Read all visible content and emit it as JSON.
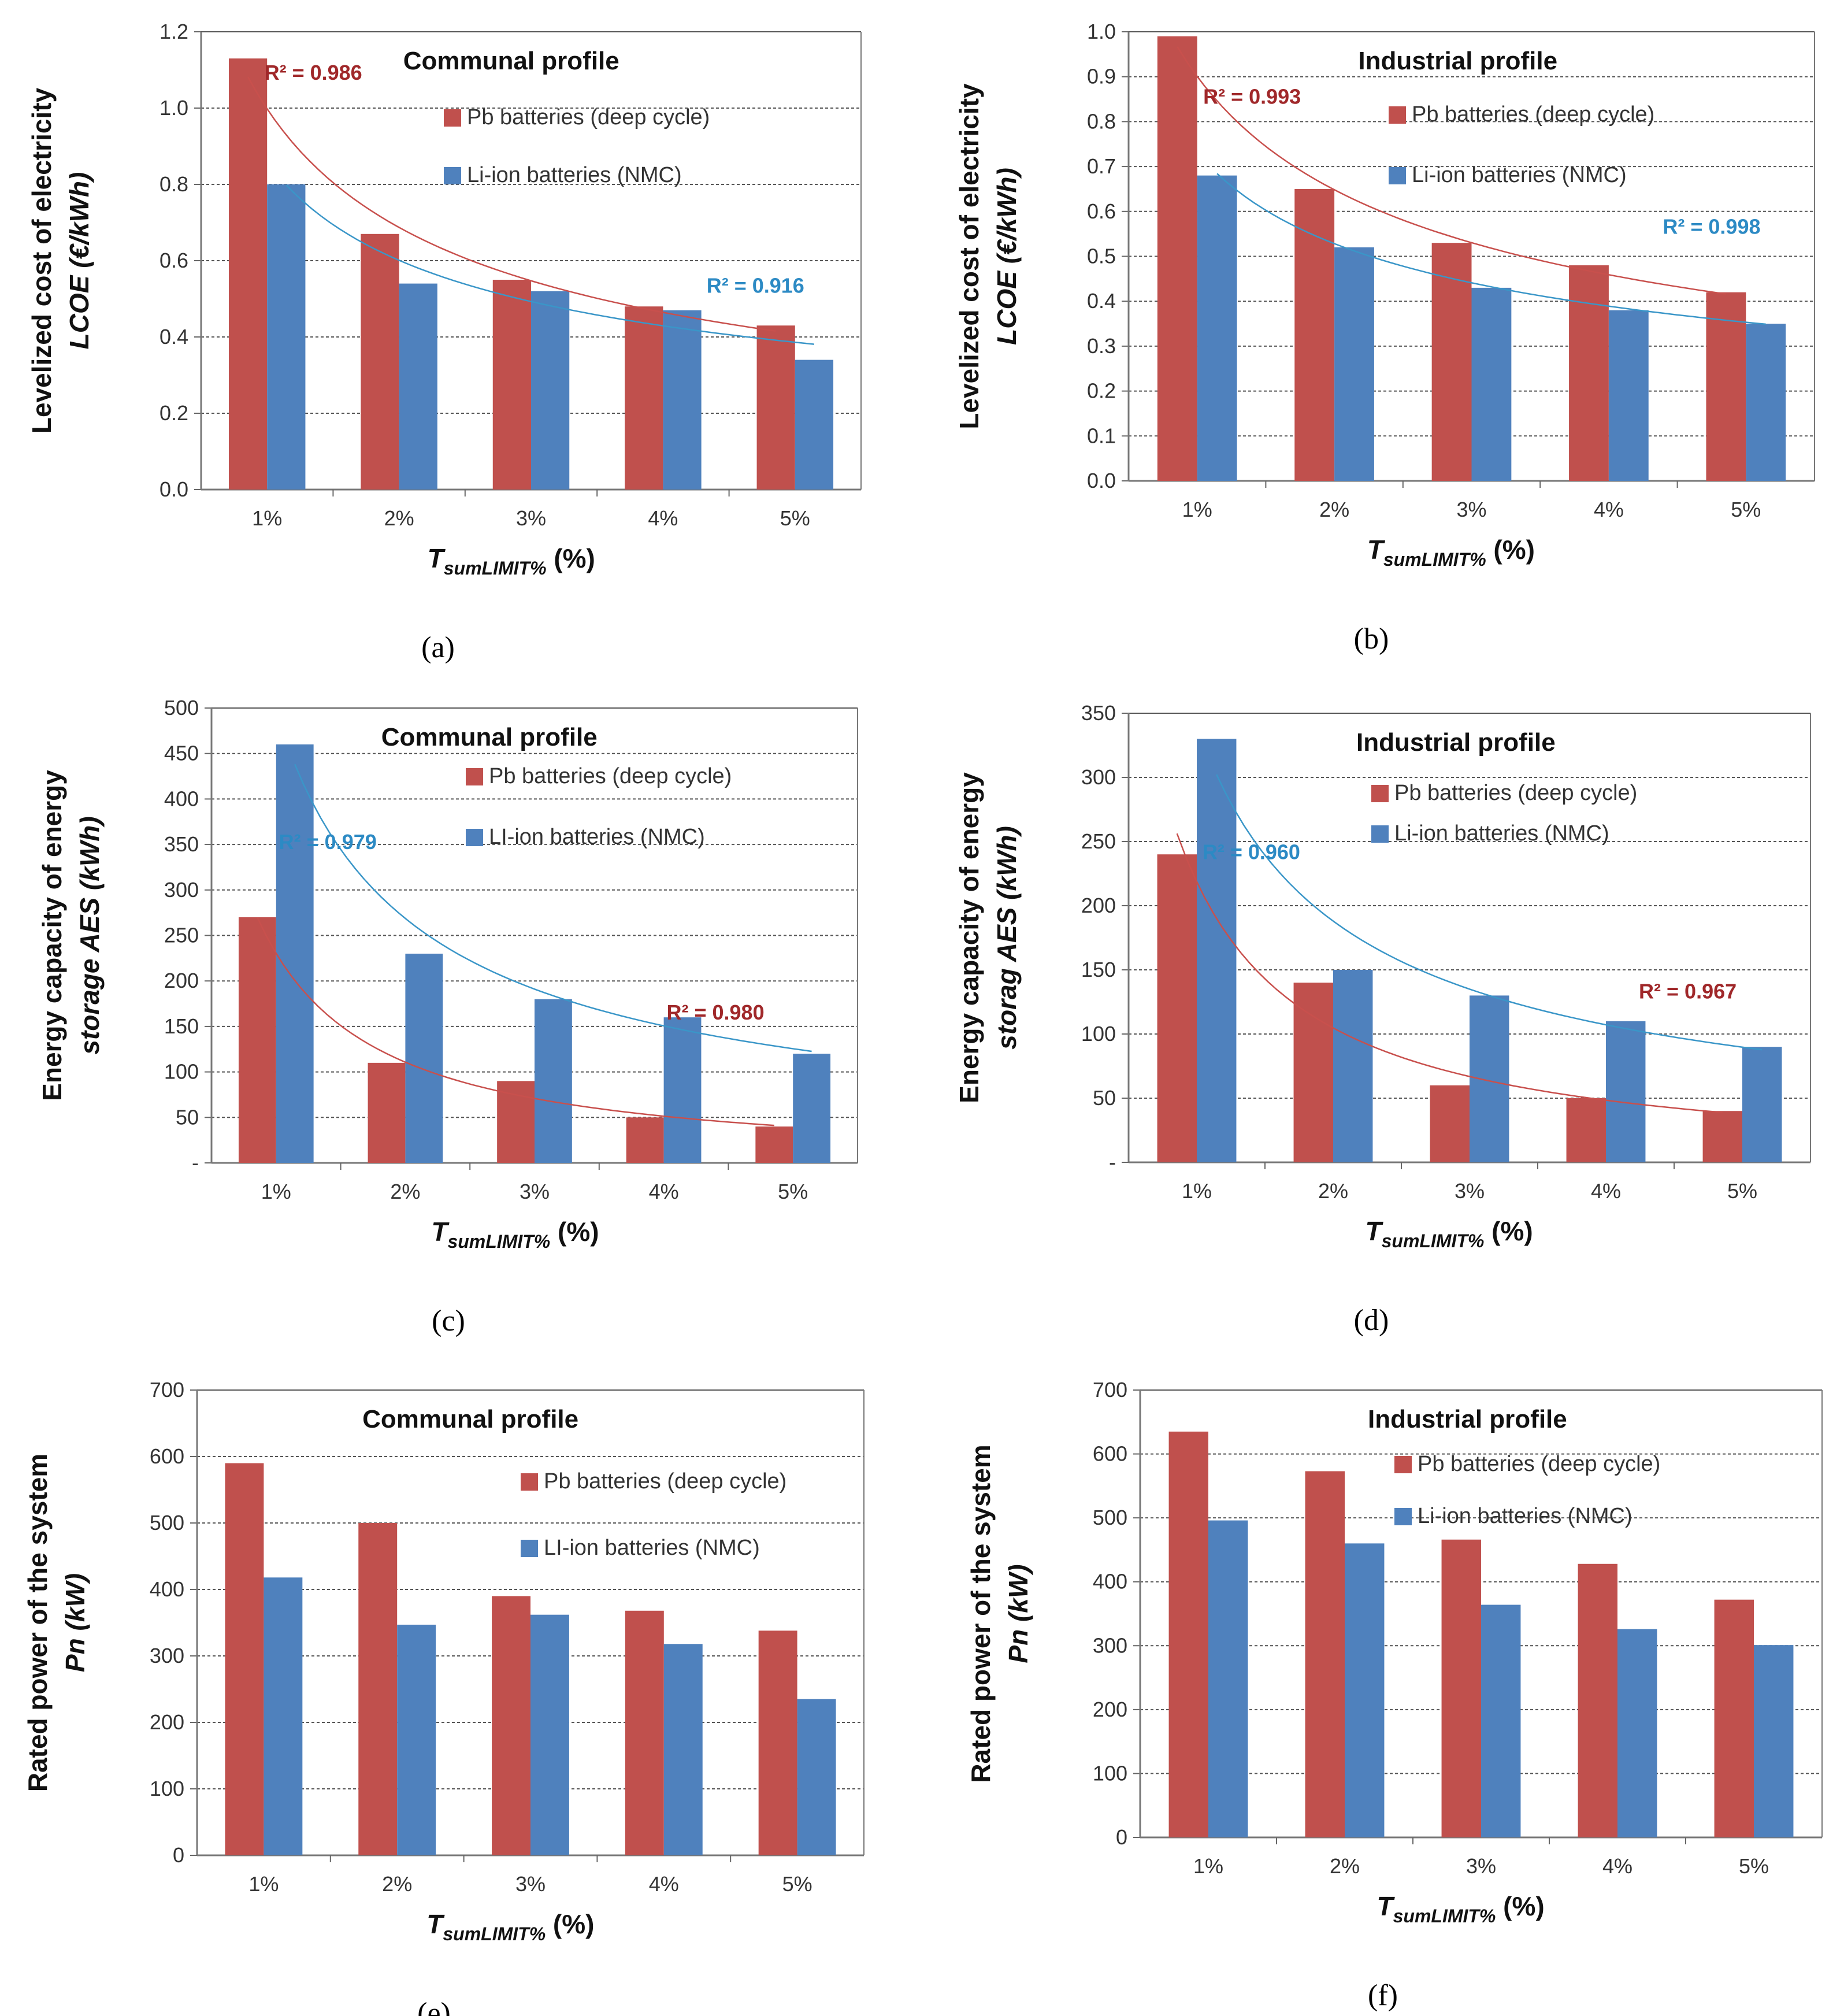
{
  "colors": {
    "pb": "#C0504D",
    "li": "#4F81BD",
    "pb_r2": "#A0282A",
    "li_r2": "#2C8AC4"
  },
  "charts": [
    {
      "type": "bar",
      "title": "Communal profile",
      "panel_label": "(a)",
      "panel_letter": "a",
      "ylabel_line1": "Levelized cost of electricity",
      "ylabel_line2": "LCOE  (€/kWh)",
      "xlabel_main": "T",
      "xlabel_sub": "sumLIMIT%",
      "xlabel_unit": " (%)",
      "categories": [
        "1%",
        "2%",
        "3%",
        "4%",
        "5%"
      ],
      "series": [
        {
          "name": "Pb batteries (deep cycle)",
          "values": [
            1.13,
            0.67,
            0.55,
            0.48,
            0.43
          ]
        },
        {
          "name": "Li-ion batteries (NMC)",
          "values": [
            0.8,
            0.54,
            0.52,
            0.47,
            0.34
          ]
        }
      ],
      "yticks": [
        "0.0",
        "0.2",
        "0.4",
        "0.6",
        "0.8",
        "1.0",
        "1.2"
      ],
      "ylim": [
        0,
        1.2
      ],
      "r2": [
        {
          "series": 0,
          "text": "R² = 0.986"
        },
        {
          "series": 1,
          "text": "R² = 0.916"
        }
      ]
    },
    {
      "type": "bar",
      "title": "Industrial profile",
      "panel_label": "(b)",
      "panel_letter": "b",
      "ylabel_line1": "Levelized cost of electricity",
      "ylabel_line2": "LCOE  (€/kWh)",
      "xlabel_main": "T",
      "xlabel_sub": "sumLIMIT%",
      "xlabel_unit": " (%)",
      "categories": [
        "1%",
        "2%",
        "3%",
        "4%",
        "5%"
      ],
      "series": [
        {
          "name": "Pb batteries (deep cycle)",
          "values": [
            0.99,
            0.65,
            0.53,
            0.48,
            0.42
          ]
        },
        {
          "name": "Li-ion batteries (NMC)",
          "values": [
            0.68,
            0.52,
            0.43,
            0.38,
            0.35
          ]
        }
      ],
      "yticks": [
        "0.0",
        "0.1",
        "0.2",
        "0.3",
        "0.4",
        "0.5",
        "0.6",
        "0.7",
        "0.8",
        "0.9",
        "1.0"
      ],
      "ylim": [
        0,
        1.0
      ],
      "r2": [
        {
          "series": 0,
          "text": "R² = 0.993"
        },
        {
          "series": 1,
          "text": "R² = 0.998"
        }
      ]
    },
    {
      "type": "bar",
      "title": "Communal profile",
      "panel_label": "(c)",
      "panel_letter": "c",
      "ylabel_line1": "Energy capacity of energy",
      "ylabel_line2": "storage  AES  (kWh)",
      "xlabel_main": "T",
      "xlabel_sub": "sumLIMIT%",
      "xlabel_unit": " (%)",
      "categories": [
        "1%",
        "2%",
        "3%",
        "4%",
        "5%"
      ],
      "series": [
        {
          "name": "Pb batteries (deep cycle)",
          "values": [
            270,
            110,
            90,
            50,
            40
          ]
        },
        {
          "name": "LI-ion batteries (NMC)",
          "values": [
            460,
            230,
            180,
            160,
            120
          ]
        }
      ],
      "yticks": [
        "-",
        "50",
        "100",
        "150",
        "200",
        "250",
        "300",
        "350",
        "400",
        "450",
        "500"
      ],
      "ylim": [
        0,
        500
      ],
      "r2": [
        {
          "series": 0,
          "text": "R² = 0.980"
        },
        {
          "series": 1,
          "text": "R² = 0.979"
        }
      ]
    },
    {
      "type": "bar",
      "title": "Industrial profile",
      "panel_label": "(d)",
      "panel_letter": "d",
      "ylabel_line1": "Energy capacity of energy",
      "ylabel_line2": "storag  AES  (kWh)",
      "xlabel_main": "T",
      "xlabel_sub": "sumLIMIT%",
      "xlabel_unit": " (%)",
      "categories": [
        "1%",
        "2%",
        "3%",
        "4%",
        "5%"
      ],
      "series": [
        {
          "name": "Pb batteries (deep cycle)",
          "values": [
            240,
            140,
            60,
            50,
            40
          ]
        },
        {
          "name": "Li-ion batteries (NMC)",
          "values": [
            330,
            150,
            130,
            110,
            90
          ]
        }
      ],
      "yticks": [
        "-",
        "50",
        "100",
        "150",
        "200",
        "250",
        "300",
        "350"
      ],
      "ylim": [
        0,
        350
      ],
      "r2": [
        {
          "series": 0,
          "text": "R² = 0.967"
        },
        {
          "series": 1,
          "text": "R² = 0.960"
        }
      ]
    },
    {
      "type": "bar",
      "title": "Communal profile",
      "panel_label": "(e)",
      "panel_letter": "e",
      "ylabel_line1": "Rated power of the system",
      "ylabel_line2": "Pn  (kW)",
      "xlabel_main": "T",
      "xlabel_sub": "sumLIMIT%",
      "xlabel_unit": " (%)",
      "categories": [
        "1%",
        "2%",
        "3%",
        "4%",
        "5%"
      ],
      "series": [
        {
          "name": "Pb batteries (deep cycle)",
          "values": [
            590,
            500,
            390,
            368,
            338
          ]
        },
        {
          "name": "LI-ion batteries (NMC)",
          "values": [
            418,
            347,
            362,
            318,
            235
          ]
        }
      ],
      "yticks": [
        "0",
        "100",
        "200",
        "300",
        "400",
        "500",
        "600",
        "700"
      ],
      "ylim": [
        0,
        700
      ],
      "r2": []
    },
    {
      "type": "bar",
      "title": "Industrial profile",
      "panel_label": "(f)",
      "panel_letter": "f",
      "ylabel_line1": "Rated power of the system",
      "ylabel_line2": "Pn  (kW)",
      "xlabel_main": "T",
      "xlabel_sub": "sumLIMIT%",
      "xlabel_unit": " (%)",
      "categories": [
        "1%",
        "2%",
        "3%",
        "4%",
        "5%"
      ],
      "series": [
        {
          "name": "Pb batteries (deep cycle)",
          "values": [
            635,
            573,
            466,
            428,
            372
          ]
        },
        {
          "name": "Li-ion batteries (NMC)",
          "values": [
            496,
            460,
            364,
            326,
            301
          ]
        }
      ],
      "yticks": [
        "0",
        "100",
        "200",
        "300",
        "400",
        "500",
        "600",
        "700"
      ],
      "ylim": [
        0,
        700
      ],
      "r2": []
    }
  ],
  "chart_data": [
    {
      "type": "bar",
      "title": "Communal profile",
      "ylabel": "Levelized cost of electricity LCOE (€/kWh)",
      "xlabel": "TsumLIMIT% (%)",
      "categories": [
        "1%",
        "2%",
        "3%",
        "4%",
        "5%"
      ],
      "ylim": [
        0,
        1.2
      ],
      "series": [
        {
          "name": "Pb batteries (deep cycle)",
          "values": [
            1.13,
            0.67,
            0.55,
            0.48,
            0.43
          ]
        },
        {
          "name": "Li-ion batteries (NMC)",
          "values": [
            0.8,
            0.54,
            0.52,
            0.47,
            0.34
          ]
        }
      ],
      "annotations": [
        "R² = 0.986",
        "R² = 0.916"
      ]
    },
    {
      "type": "bar",
      "title": "Industrial profile",
      "ylabel": "Levelized cost of electricity LCOE (€/kWh)",
      "xlabel": "TsumLIMIT% (%)",
      "categories": [
        "1%",
        "2%",
        "3%",
        "4%",
        "5%"
      ],
      "ylim": [
        0,
        1.0
      ],
      "series": [
        {
          "name": "Pb batteries (deep cycle)",
          "values": [
            0.99,
            0.65,
            0.53,
            0.48,
            0.42
          ]
        },
        {
          "name": "Li-ion batteries (NMC)",
          "values": [
            0.68,
            0.52,
            0.43,
            0.38,
            0.35
          ]
        }
      ],
      "annotations": [
        "R² = 0.993",
        "R² = 0.998"
      ]
    },
    {
      "type": "bar",
      "title": "Communal profile",
      "ylabel": "Energy capacity of energy storage AES (kWh)",
      "xlabel": "TsumLIMIT% (%)",
      "categories": [
        "1%",
        "2%",
        "3%",
        "4%",
        "5%"
      ],
      "ylim": [
        0,
        500
      ],
      "series": [
        {
          "name": "Pb batteries (deep cycle)",
          "values": [
            270,
            110,
            90,
            50,
            40
          ]
        },
        {
          "name": "LI-ion batteries (NMC)",
          "values": [
            460,
            230,
            180,
            160,
            120
          ]
        }
      ],
      "annotations": [
        "R² = 0.979",
        "R² = 0.980"
      ]
    },
    {
      "type": "bar",
      "title": "Industrial profile",
      "ylabel": "Energy capacity of energy storag AES (kWh)",
      "xlabel": "TsumLIMIT% (%)",
      "categories": [
        "1%",
        "2%",
        "3%",
        "4%",
        "5%"
      ],
      "ylim": [
        0,
        350
      ],
      "series": [
        {
          "name": "Pb batteries (deep cycle)",
          "values": [
            240,
            140,
            60,
            50,
            40
          ]
        },
        {
          "name": "Li-ion batteries (NMC)",
          "values": [
            330,
            150,
            130,
            110,
            90
          ]
        }
      ],
      "annotations": [
        "R² = 0.960",
        "R² = 0.967"
      ]
    },
    {
      "type": "bar",
      "title": "Communal profile",
      "ylabel": "Rated power of the system Pn (kW)",
      "xlabel": "TsumLIMIT% (%)",
      "categories": [
        "1%",
        "2%",
        "3%",
        "4%",
        "5%"
      ],
      "ylim": [
        0,
        700
      ],
      "series": [
        {
          "name": "Pb batteries (deep cycle)",
          "values": [
            590,
            500,
            390,
            368,
            338
          ]
        },
        {
          "name": "LI-ion batteries (NMC)",
          "values": [
            418,
            347,
            362,
            318,
            235
          ]
        }
      ]
    },
    {
      "type": "bar",
      "title": "Industrial profile",
      "ylabel": "Rated power of the system Pn (kW)",
      "xlabel": "TsumLIMIT% (%)",
      "categories": [
        "1%",
        "2%",
        "3%",
        "4%",
        "5%"
      ],
      "ylim": [
        0,
        700
      ],
      "series": [
        {
          "name": "Pb batteries (deep cycle)",
          "values": [
            635,
            573,
            466,
            428,
            372
          ]
        },
        {
          "name": "Li-ion batteries (NMC)",
          "values": [
            496,
            460,
            364,
            326,
            301
          ]
        }
      ]
    }
  ]
}
